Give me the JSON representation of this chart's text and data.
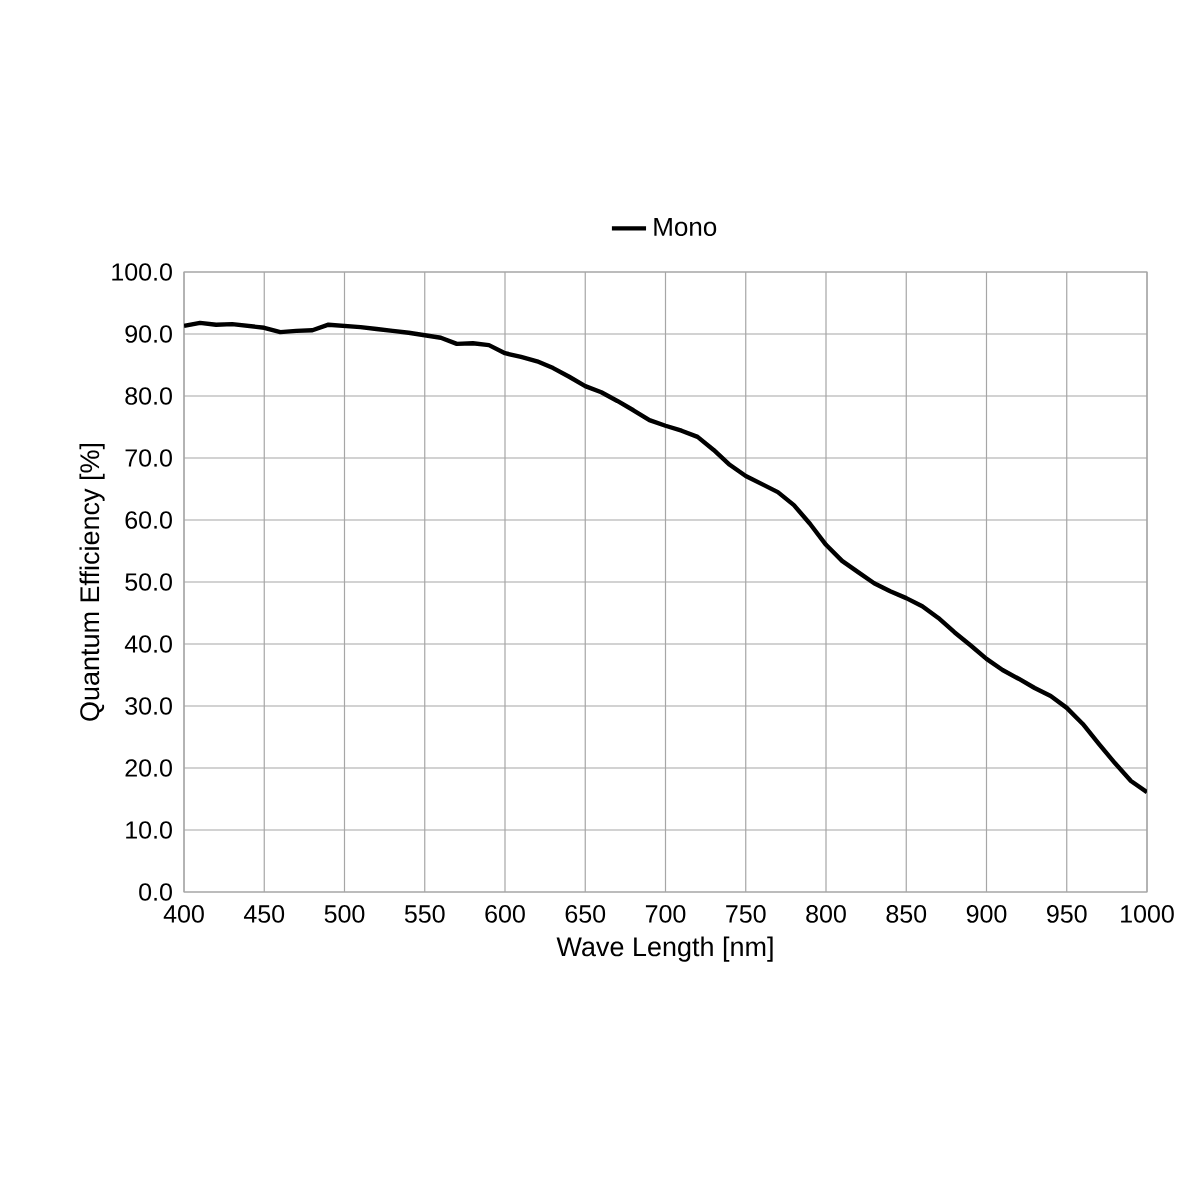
{
  "chart_data": {
    "type": "line",
    "xlabel": "Wave Length [nm]",
    "ylabel": "Quantum Efficiency [%]",
    "x": [
      400,
      410,
      420,
      430,
      440,
      450,
      460,
      470,
      480,
      490,
      500,
      510,
      520,
      530,
      540,
      550,
      560,
      570,
      580,
      590,
      600,
      610,
      620,
      630,
      640,
      650,
      660,
      670,
      680,
      690,
      700,
      710,
      720,
      730,
      740,
      750,
      760,
      770,
      780,
      790,
      800,
      810,
      820,
      830,
      840,
      850,
      860,
      870,
      880,
      890,
      900,
      910,
      920,
      930,
      940,
      950,
      960,
      970,
      980,
      990,
      1000
    ],
    "series": [
      {
        "name": "Mono",
        "color": "#000000",
        "values": [
          91.3,
          91.8,
          91.5,
          91.6,
          91.3,
          91.0,
          90.3,
          90.5,
          90.6,
          91.5,
          91.3,
          91.1,
          90.8,
          90.5,
          90.2,
          89.8,
          89.4,
          88.4,
          88.5,
          88.2,
          86.9,
          86.3,
          85.6,
          84.5,
          83.1,
          81.6,
          80.6,
          79.2,
          77.7,
          76.1,
          75.2,
          74.4,
          73.4,
          71.3,
          68.9,
          67.1,
          65.8,
          64.5,
          62.4,
          59.4,
          56.0,
          53.4,
          51.6,
          49.8,
          48.5,
          47.4,
          46.1,
          44.2,
          41.9,
          39.8,
          37.6,
          35.8,
          34.4,
          32.9,
          31.6,
          29.7,
          27.1,
          23.9,
          20.8,
          17.9,
          16.1
        ]
      }
    ],
    "xlim": [
      400,
      1000
    ],
    "ylim": [
      0,
      100
    ],
    "xticks": [
      400,
      450,
      500,
      550,
      600,
      650,
      700,
      750,
      800,
      850,
      900,
      950,
      1000
    ],
    "yticks": [
      {
        "value": 0,
        "label": "0.0"
      },
      {
        "value": 10,
        "label": "10.0"
      },
      {
        "value": 20,
        "label": "20.0"
      },
      {
        "value": 30,
        "label": "30.0"
      },
      {
        "value": 40,
        "label": "40.0"
      },
      {
        "value": 50,
        "label": "50.0"
      },
      {
        "value": 60,
        "label": "60.0"
      },
      {
        "value": 70,
        "label": "70.0"
      },
      {
        "value": 80,
        "label": "80.0"
      },
      {
        "value": 90,
        "label": "90.0"
      },
      {
        "value": 100,
        "label": "100.0"
      }
    ],
    "grid": true,
    "legend": "top"
  }
}
